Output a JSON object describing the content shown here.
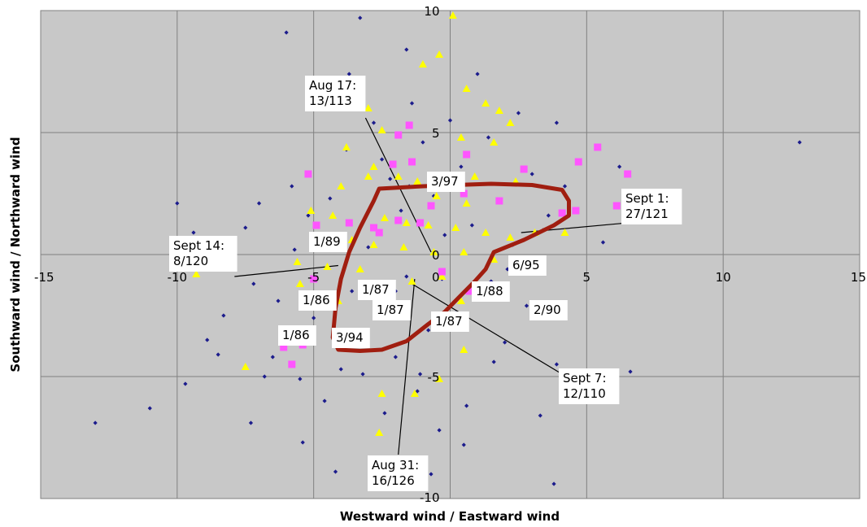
{
  "chart_data": {
    "type": "scatter",
    "xlabel": "Westward wind / Eastward wind",
    "ylabel": "Southward wind / Northward wind",
    "xlim": [
      -15,
      15
    ],
    "ylim": [
      -10,
      10
    ],
    "x_ticks": [
      "-15",
      "-10",
      "-5",
      "0",
      "5",
      "10",
      "15"
    ],
    "y_ticks": [
      "10",
      "5",
      "0",
      "-5",
      "-10"
    ],
    "grid": true,
    "background": "#c8c8c8",
    "colors": {
      "navy": "#1c1c8c",
      "yellow": "#ffff00",
      "magenta": "#ff55ff",
      "contour": "#a01e10"
    },
    "series": [
      {
        "marker": "diamond",
        "color": "#1c1c8c",
        "points": [
          [
            -13,
            -6.9
          ],
          [
            -11,
            -6.3
          ],
          [
            -10,
            2.1
          ],
          [
            -9.7,
            -5.3
          ],
          [
            -9.4,
            0.9
          ],
          [
            -9,
            -0.6
          ],
          [
            -8.9,
            -3.5
          ],
          [
            -8.3,
            -2.5
          ],
          [
            -8.5,
            -4.1
          ],
          [
            -8,
            0.1
          ],
          [
            -7.5,
            1.1
          ],
          [
            -7.2,
            -1.2
          ],
          [
            -7,
            2.1
          ],
          [
            -6.8,
            -5
          ],
          [
            -6.5,
            -4.2
          ],
          [
            -6.3,
            -1.9
          ],
          [
            -6,
            -3
          ],
          [
            -5.8,
            2.8
          ],
          [
            -5.5,
            -5.1
          ],
          [
            -5.2,
            1.6
          ],
          [
            -5,
            -2.6
          ],
          [
            -4.8,
            0.6
          ],
          [
            -4.6,
            -6
          ],
          [
            -4.4,
            2.3
          ],
          [
            -4.2,
            -8.9
          ],
          [
            -4,
            -4.7
          ],
          [
            -3.8,
            4.3
          ],
          [
            -3.6,
            -1.5
          ],
          [
            -3.4,
            6.8
          ],
          [
            -3.2,
            -3.3
          ],
          [
            -3,
            0.3
          ],
          [
            -2.8,
            5.4
          ],
          [
            -2.6,
            -2.1
          ],
          [
            -2.4,
            -6.5
          ],
          [
            -2.2,
            3.1
          ],
          [
            -2,
            -4.2
          ],
          [
            -1.8,
            1.8
          ],
          [
            -1.6,
            -0.9
          ],
          [
            -1.4,
            6.2
          ],
          [
            -1.2,
            -5.6
          ],
          [
            -1,
            4.6
          ],
          [
            -0.8,
            -3.1
          ],
          [
            -0.6,
            2.4
          ],
          [
            -0.4,
            -7.2
          ],
          [
            -0.2,
            0.8
          ],
          [
            0,
            5.5
          ],
          [
            0.2,
            -2.4
          ],
          [
            0.4,
            3.6
          ],
          [
            0.6,
            -6.2
          ],
          [
            0.8,
            1.2
          ],
          [
            1,
            7.4
          ],
          [
            1.2,
            -1.3
          ],
          [
            1.4,
            4.8
          ],
          [
            1.6,
            -4.4
          ],
          [
            1.8,
            2.2
          ],
          [
            2,
            -3.6
          ],
          [
            2.3,
            0.4
          ],
          [
            2.5,
            5.8
          ],
          [
            2.8,
            -2.1
          ],
          [
            3,
            3.3
          ],
          [
            3.3,
            -6.6
          ],
          [
            3.6,
            1.6
          ],
          [
            3.9,
            -4.5
          ],
          [
            4.2,
            2.8
          ],
          [
            -3.3,
            9.7
          ],
          [
            -6,
            9.1
          ],
          [
            -3.7,
            7.4
          ],
          [
            -1.6,
            8.4
          ],
          [
            12.8,
            4.6
          ],
          [
            6.6,
            -4.8
          ],
          [
            5.6,
            0.5
          ],
          [
            3.9,
            5.4
          ],
          [
            6.2,
            3.6
          ],
          [
            3.8,
            -9.4
          ],
          [
            -0.7,
            -9
          ],
          [
            -5.4,
            -7.7
          ],
          [
            -7.3,
            -6.9
          ],
          [
            -3.2,
            -4.9
          ],
          [
            -1.1,
            -4.9
          ],
          [
            0.5,
            -7.8
          ],
          [
            -2,
            -1.5
          ],
          [
            1.5,
            -1.1
          ],
          [
            -0.3,
            -1
          ],
          [
            -1.5,
            2.8
          ],
          [
            -5.7,
            0.2
          ],
          [
            3.4,
            1
          ],
          [
            2.1,
            -0.6
          ],
          [
            -2.5,
            3.9
          ]
        ]
      },
      {
        "marker": "triangle",
        "color": "#ffff00",
        "points": [
          [
            0.1,
            9.8
          ],
          [
            -0.4,
            8.2
          ],
          [
            -1,
            7.8
          ],
          [
            0.6,
            6.8
          ],
          [
            1.3,
            6.2
          ],
          [
            1.8,
            5.9
          ],
          [
            2.2,
            5.4
          ],
          [
            -3,
            6
          ],
          [
            -2.5,
            5.1
          ],
          [
            0.4,
            4.8
          ],
          [
            1.6,
            4.6
          ],
          [
            -3.8,
            4.4
          ],
          [
            -2.8,
            3.6
          ],
          [
            -1.9,
            3.2
          ],
          [
            -3,
            3.2
          ],
          [
            -1.2,
            3
          ],
          [
            0.9,
            3.2
          ],
          [
            2.4,
            3
          ],
          [
            -4,
            2.8
          ],
          [
            -0.5,
            2.4
          ],
          [
            0.6,
            2.1
          ],
          [
            -5.1,
            1.8
          ],
          [
            -4.3,
            1.6
          ],
          [
            -2.4,
            1.5
          ],
          [
            -1.6,
            1.3
          ],
          [
            -0.8,
            1.2
          ],
          [
            0.2,
            1.1
          ],
          [
            1.3,
            0.9
          ],
          [
            2.2,
            0.7
          ],
          [
            3.1,
            0.9
          ],
          [
            4.2,
            0.9
          ],
          [
            -3.6,
            0.6
          ],
          [
            -2.8,
            0.4
          ],
          [
            -1.7,
            0.3
          ],
          [
            -0.6,
            0.1
          ],
          [
            0.5,
            0.1
          ],
          [
            1.6,
            -0.2
          ],
          [
            -5.6,
            -0.3
          ],
          [
            -4.5,
            -0.5
          ],
          [
            -3.3,
            -0.6
          ],
          [
            -1.4,
            -1.1
          ],
          [
            -0.3,
            -0.9
          ],
          [
            -9.3,
            -0.8
          ],
          [
            -5.5,
            -1.2
          ],
          [
            -4.1,
            -1.9
          ],
          [
            0.4,
            -1.9
          ],
          [
            -7.5,
            -4.6
          ],
          [
            -2.5,
            -5.7
          ],
          [
            -1.3,
            -5.7
          ],
          [
            -0.4,
            -5.1
          ],
          [
            0.5,
            -3.9
          ],
          [
            -2.6,
            -7.3
          ]
        ]
      },
      {
        "marker": "square",
        "color": "#ff55ff",
        "points": [
          [
            -5.2,
            3.3
          ],
          [
            -1.9,
            4.9
          ],
          [
            -1.5,
            5.3
          ],
          [
            0.6,
            4.1
          ],
          [
            2.7,
            3.5
          ],
          [
            4.7,
            3.8
          ],
          [
            5.4,
            4.4
          ],
          [
            6.5,
            3.3
          ],
          [
            -2.1,
            3.7
          ],
          [
            -1.4,
            3.8
          ],
          [
            0.5,
            2.5
          ],
          [
            1.8,
            2.2
          ],
          [
            -0.7,
            2
          ],
          [
            4.1,
            1.7
          ],
          [
            4.6,
            1.8
          ],
          [
            6.1,
            2
          ],
          [
            -3.7,
            1.3
          ],
          [
            -2.8,
            1.1
          ],
          [
            -2.6,
            0.9
          ],
          [
            -1.9,
            1.4
          ],
          [
            -1.1,
            1.3
          ],
          [
            -5,
            -1
          ],
          [
            -4.9,
            1.2
          ],
          [
            -0.3,
            -0.7
          ],
          [
            0.7,
            -1.5
          ],
          [
            -6.1,
            -3.8
          ],
          [
            -5.4,
            -3.7
          ],
          [
            -5.8,
            -4.5
          ]
        ]
      }
    ],
    "contour": [
      [
        -2.6,
        2.7
      ],
      [
        -1,
        2.8
      ],
      [
        0.2,
        2.85
      ],
      [
        1.5,
        2.9
      ],
      [
        3,
        2.85
      ],
      [
        4.1,
        2.65
      ],
      [
        4.35,
        2.2
      ],
      [
        4.35,
        1.6
      ],
      [
        3.8,
        1.2
      ],
      [
        2.7,
        0.6
      ],
      [
        1.6,
        0.1
      ],
      [
        1.3,
        -0.6
      ],
      [
        0.9,
        -1.1
      ],
      [
        0.5,
        -1.55
      ],
      [
        0.15,
        -1.95
      ],
      [
        -0.2,
        -2.35
      ],
      [
        -0.8,
        -2.85
      ],
      [
        -1.6,
        -3.55
      ],
      [
        -2.5,
        -3.9
      ],
      [
        -3.3,
        -3.95
      ],
      [
        -4.1,
        -3.9
      ],
      [
        -4.3,
        -3.4
      ],
      [
        -4.2,
        -2.2
      ],
      [
        -4,
        -1
      ],
      [
        -3.7,
        0.1
      ],
      [
        -3.3,
        1.1
      ],
      [
        -2.8,
        2.2
      ],
      [
        -2.6,
        2.7
      ]
    ],
    "annotations": [
      {
        "lines": [
          "Aug 17:",
          "13/113"
        ],
        "from": [
          -0.7,
          0.1
        ],
        "to": [
          -3.1,
          5.6
        ]
      },
      {
        "lines": [
          "Sept 1:",
          "27/121"
        ],
        "from": [
          2.6,
          0.9
        ],
        "to": [
          6.5,
          1.3
        ]
      },
      {
        "lines": [
          "Sept 14:",
          "8/120"
        ],
        "from": [
          -4.1,
          -0.45
        ],
        "to": [
          -7.9,
          -0.9
        ]
      },
      {
        "lines": [
          "Sept 7:",
          "12/110"
        ],
        "from": [
          -1.4,
          -1.2
        ],
        "to": [
          4.1,
          -4.9
        ]
      },
      {
        "lines": [
          "Aug 31:",
          "16/126"
        ],
        "from": [
          -1.3,
          -1
        ],
        "to": [
          -1.9,
          -8.2
        ]
      },
      {
        "lines": [
          "3/97"
        ]
      },
      {
        "lines": [
          "1/89"
        ]
      },
      {
        "lines": [
          "6/95"
        ]
      },
      {
        "lines": [
          "1/87"
        ]
      },
      {
        "lines": [
          "1/86"
        ]
      },
      {
        "lines": [
          "1/87"
        ]
      },
      {
        "lines": [
          "1/88"
        ]
      },
      {
        "lines": [
          "1/87"
        ]
      },
      {
        "lines": [
          "2/90"
        ]
      },
      {
        "lines": [
          "1/86"
        ]
      },
      {
        "lines": [
          "3/94"
        ]
      }
    ]
  }
}
